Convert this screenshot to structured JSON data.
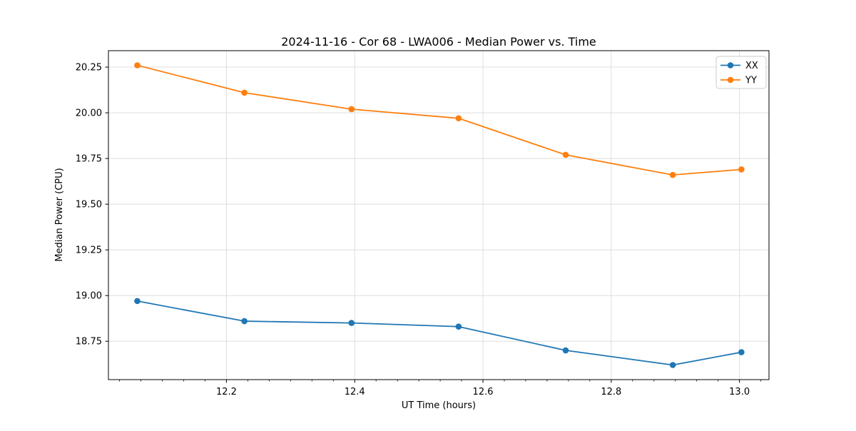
{
  "figure": {
    "title": "2024-11-16 - Cor 68 - LWA006 - Median Power vs. Time",
    "xlabel": "UT Time (hours)",
    "ylabel": "Median Power (CPU)"
  },
  "chart_data": {
    "type": "line",
    "title": "2024-11-16 - Cor 68 - LWA006 - Median Power vs. Time",
    "xlabel": "UT Time (hours)",
    "ylabel": "Median Power (CPU)",
    "x": [
      12.061,
      12.228,
      12.395,
      12.562,
      12.729,
      12.896,
      13.003
    ],
    "series": [
      {
        "name": "XX",
        "color": "#1f77b4",
        "values": [
          18.97,
          18.86,
          18.85,
          18.83,
          18.7,
          18.62,
          18.69
        ]
      },
      {
        "name": "YY",
        "color": "#ff7f0e",
        "values": [
          20.26,
          20.11,
          20.02,
          19.97,
          19.77,
          19.66,
          19.69
        ]
      }
    ],
    "xlim": [
      12.016,
      13.046
    ],
    "ylim": [
      18.54,
      20.34
    ],
    "xticks": {
      "values": [
        12.2,
        12.4,
        12.6,
        12.8,
        13.0
      ],
      "labels": [
        "12.2",
        "12.4",
        "12.6",
        "12.8",
        "13.0"
      ]
    },
    "yticks": {
      "values": [
        18.75,
        19.0,
        19.25,
        19.5,
        19.75,
        20.0,
        20.25
      ],
      "labels": [
        "18.75",
        "19.00",
        "19.25",
        "19.50",
        "19.75",
        "20.00",
        "20.25"
      ]
    },
    "x_minor_step": 0.0333333,
    "grid": true,
    "grid_color": "#dedede",
    "spine_color": "#000000",
    "background": "#ffffff",
    "marker": "o",
    "legend": {
      "position": "upper right",
      "entries": [
        "XX",
        "YY"
      ]
    }
  }
}
